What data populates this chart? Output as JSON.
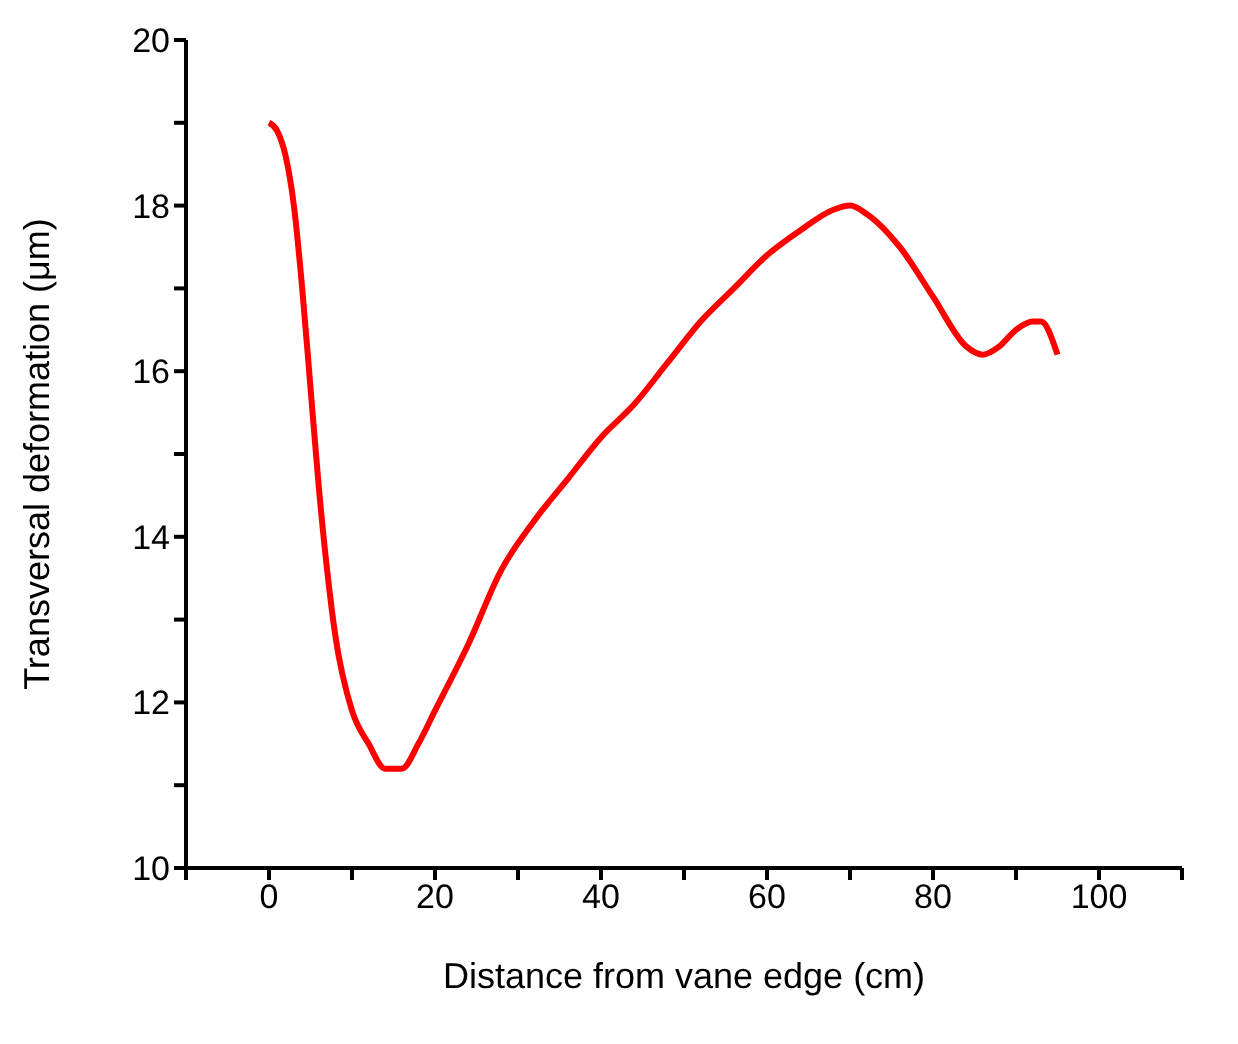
{
  "chart_data": {
    "type": "line",
    "xlabel": "Distance from vane edge (cm)",
    "ylabel": "Transversal deformation (μm)",
    "x": [
      0,
      1,
      2,
      3,
      4,
      5,
      6,
      7,
      8,
      10,
      12,
      14,
      16,
      18,
      20,
      24,
      28,
      32,
      36,
      40,
      44,
      48,
      52,
      56,
      60,
      64,
      68,
      70,
      72,
      76,
      80,
      84,
      86,
      88,
      90,
      92,
      93,
      95
    ],
    "series": [
      {
        "color": "#ff0000",
        "values": [
          19,
          18.9,
          18.6,
          18,
          17,
          15.8,
          14.6,
          13.6,
          12.8,
          11.9,
          11.5,
          11.2,
          11.2,
          11.5,
          11.9,
          12.7,
          13.6,
          14.2,
          14.7,
          15.2,
          15.6,
          16.1,
          16.6,
          17,
          17.4,
          17.7,
          17.95,
          18,
          17.9,
          17.5,
          16.9,
          16.3,
          16.2,
          16.3,
          16.5,
          16.6,
          16.6,
          16.2
        ]
      }
    ],
    "xlim": [
      -10,
      110
    ],
    "xticks": [
      {
        "value": -10,
        "label": null
      },
      0,
      {
        "value": 10,
        "label": null
      },
      20,
      {
        "value": 30,
        "label": null
      },
      40,
      {
        "value": 50,
        "label": null
      },
      60,
      {
        "value": 70,
        "label": null
      },
      80,
      {
        "value": 90,
        "label": null
      },
      100,
      {
        "value": 110,
        "label": null
      }
    ],
    "ylim": [
      10,
      20
    ],
    "yticks": [
      10,
      {
        "value": 11,
        "label": null
      },
      12,
      {
        "value": 13,
        "label": null
      },
      14,
      {
        "value": 15,
        "label": null
      },
      16,
      {
        "value": 17,
        "label": null
      },
      18,
      {
        "value": 19,
        "label": null
      },
      20
    ],
    "grid": false,
    "legend": false,
    "marker": "none",
    "line_style": "solid"
  }
}
